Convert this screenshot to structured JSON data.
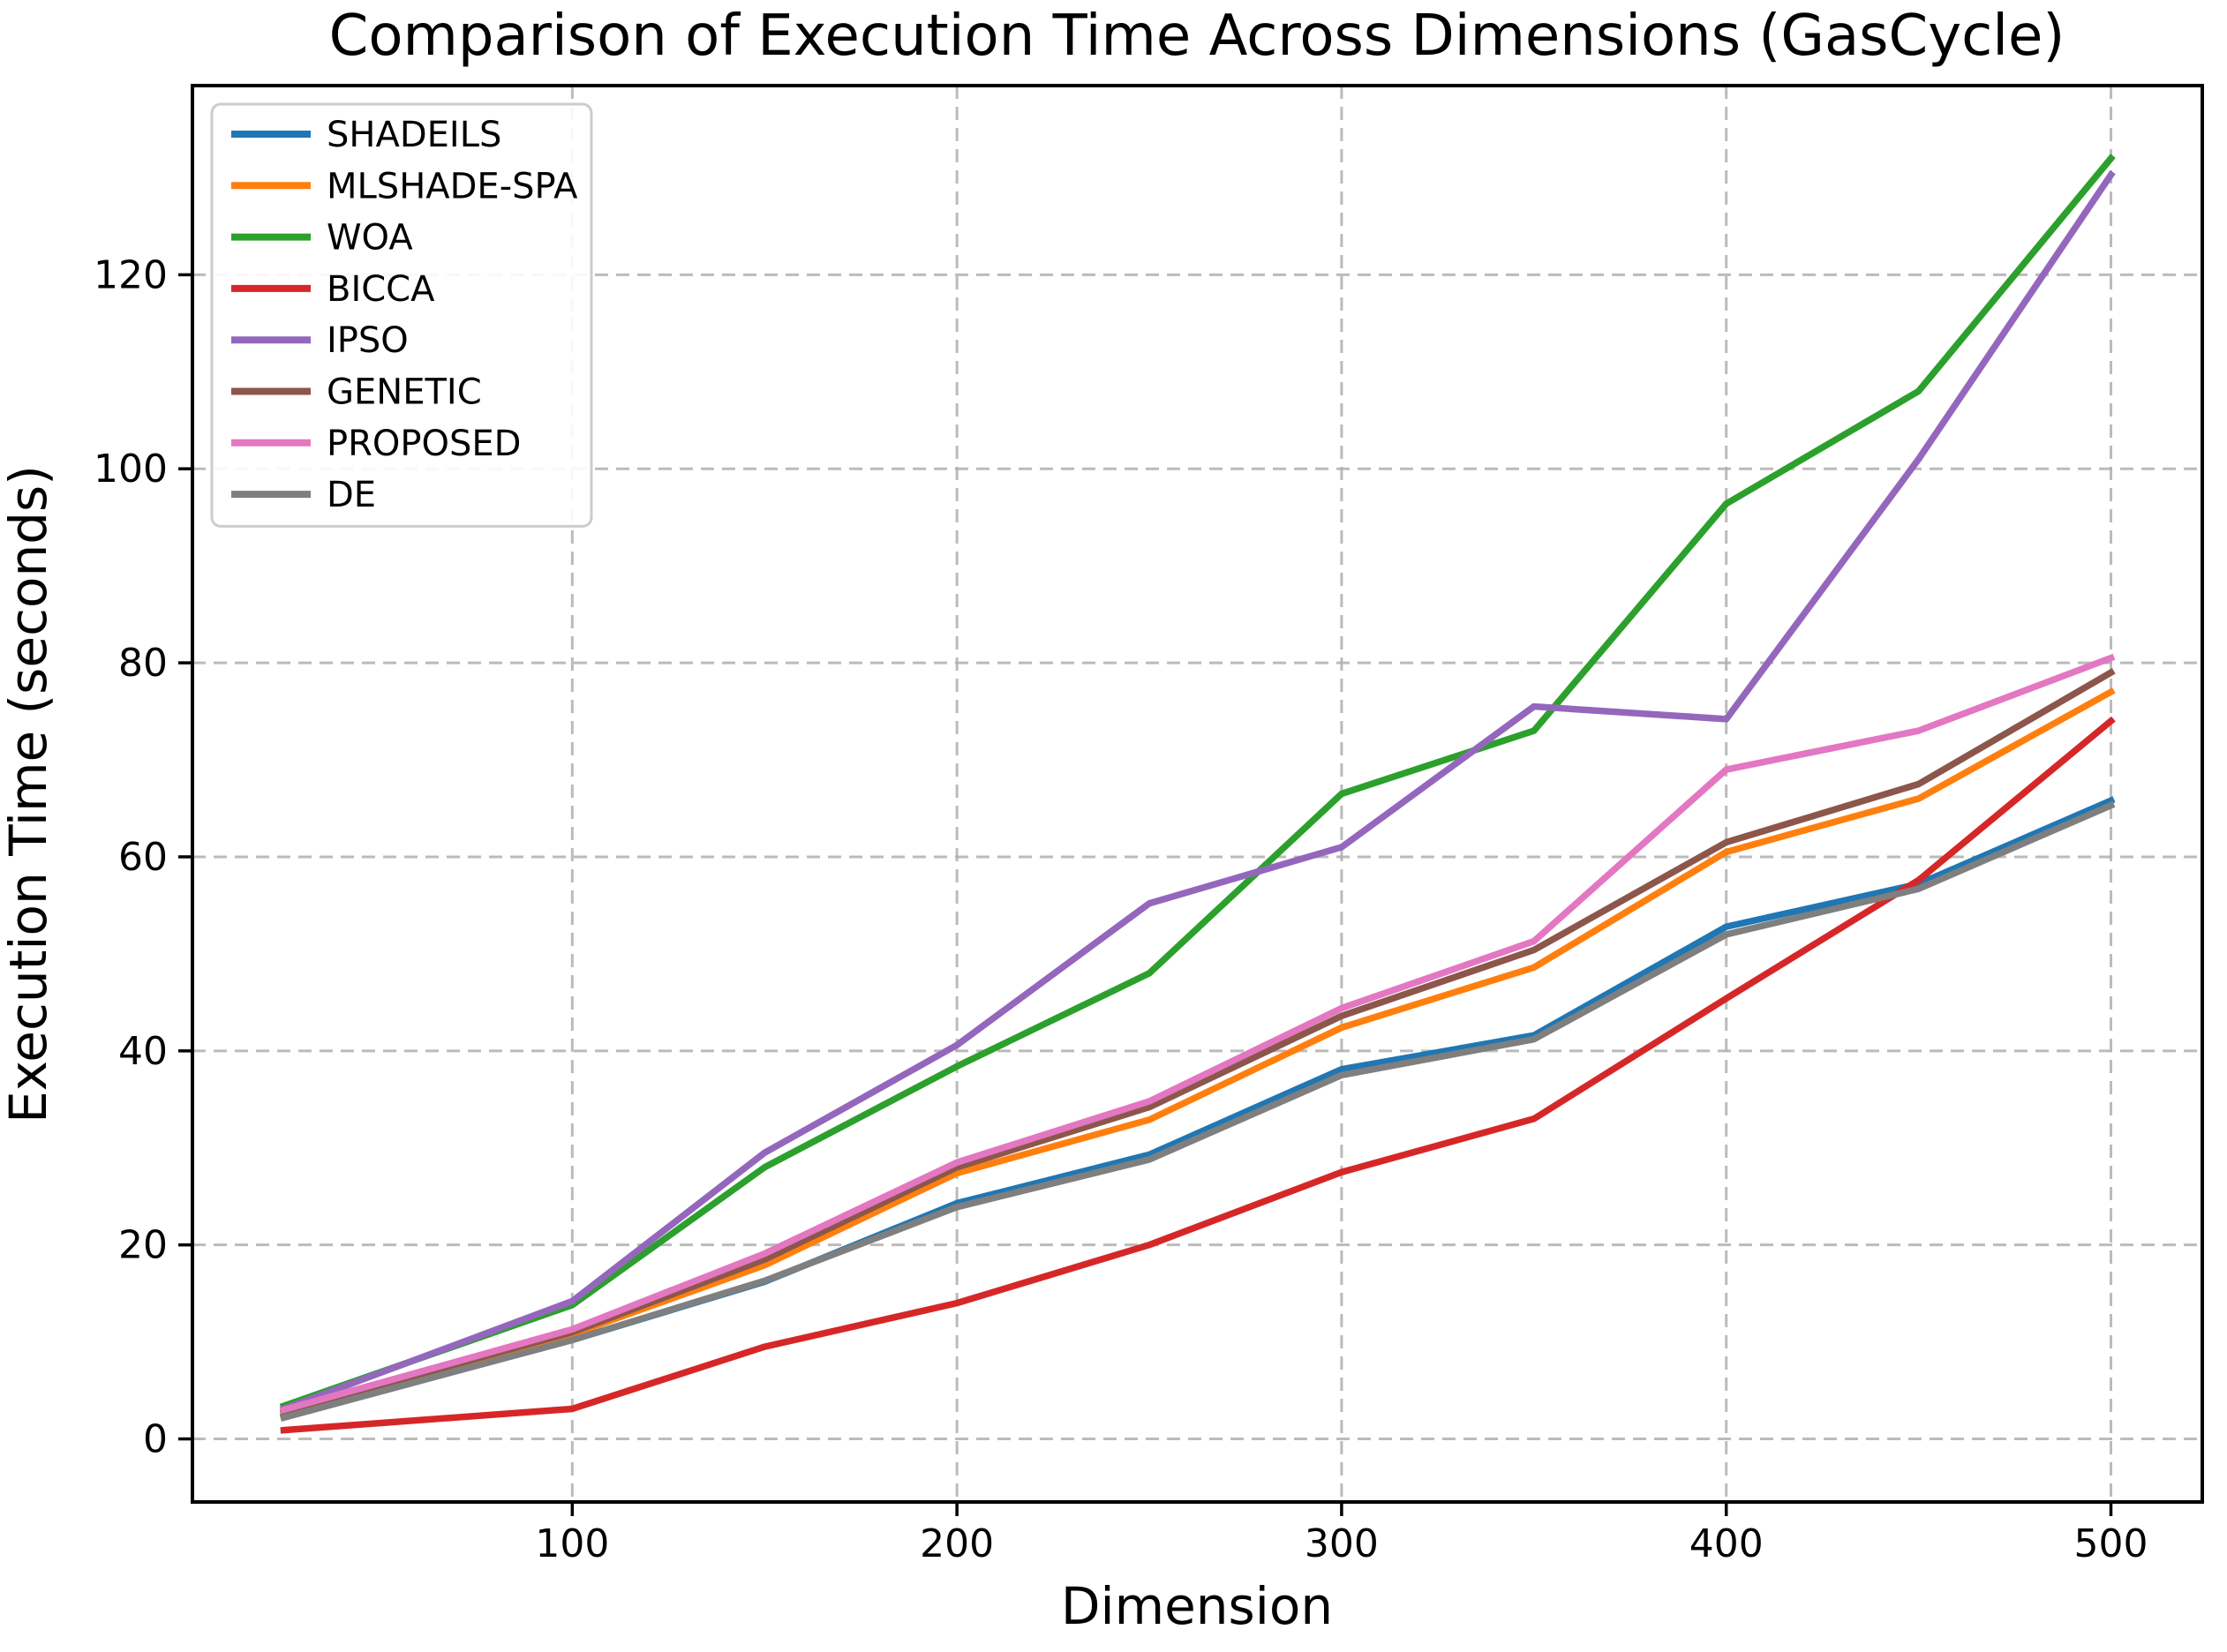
{
  "chart_data": {
    "type": "line",
    "title": "Comparison of Execution Time Across Dimensions (GasCycle)",
    "xlabel": "Dimension",
    "ylabel": "Execution Time (seconds)",
    "x": [
      25,
      100,
      150,
      200,
      250,
      300,
      350,
      400,
      450,
      500
    ],
    "xticks": [
      100,
      200,
      300,
      400,
      500
    ],
    "yticks": [
      0,
      20,
      40,
      60,
      80,
      100,
      120
    ],
    "xlim": [
      1.25,
      523.75
    ],
    "ylim": [
      -6.5,
      139.5
    ],
    "grid": true,
    "grid_style": "dashed",
    "legend_position": "upper-left",
    "series": [
      {
        "name": "SHADEILS",
        "color": "#1f77b4",
        "values": [
          2.3,
          10.2,
          16.2,
          24.3,
          29.3,
          38.1,
          41.6,
          52.8,
          57.2,
          65.8
        ]
      },
      {
        "name": "MLSHADE-SPA",
        "color": "#ff7f0e",
        "values": [
          2.6,
          10.8,
          17.9,
          27.4,
          32.9,
          42.4,
          48.6,
          60.5,
          66.0,
          77.0
        ]
      },
      {
        "name": "WOA",
        "color": "#2ca02c",
        "values": [
          3.4,
          13.8,
          28.0,
          38.4,
          48.0,
          66.5,
          73.0,
          96.4,
          108.0,
          132.0
        ]
      },
      {
        "name": "BICCA",
        "color": "#d62728",
        "values": [
          0.9,
          3.1,
          9.5,
          14.0,
          20.0,
          27.5,
          33.0,
          45.4,
          57.6,
          74.0
        ]
      },
      {
        "name": "IPSO",
        "color": "#9467bd",
        "values": [
          3.1,
          14.2,
          29.5,
          40.6,
          55.2,
          61.0,
          75.5,
          74.2,
          101.0,
          130.3
        ]
      },
      {
        "name": "GENETIC",
        "color": "#8c564b",
        "values": [
          2.8,
          11.0,
          18.5,
          28.0,
          34.2,
          43.6,
          50.4,
          61.5,
          67.5,
          79.0
        ]
      },
      {
        "name": "PROPOSED",
        "color": "#e377c2",
        "values": [
          3.0,
          11.3,
          19.1,
          28.5,
          34.8,
          44.4,
          51.3,
          69.0,
          73.0,
          80.5
        ]
      },
      {
        "name": "DE",
        "color": "#7f7f7f",
        "values": [
          2.2,
          10.2,
          16.3,
          23.9,
          28.8,
          37.5,
          41.2,
          52.0,
          56.7,
          65.3
        ]
      }
    ]
  }
}
